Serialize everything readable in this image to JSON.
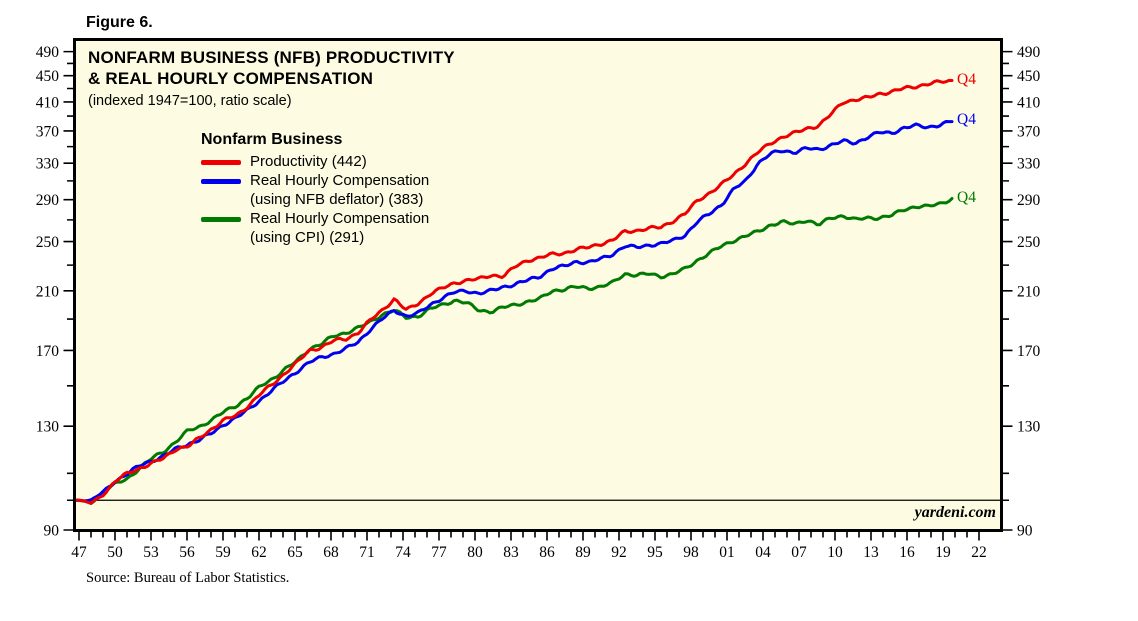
{
  "figure_label": "Figure 6.",
  "chart": {
    "title_line1": "NONFARM BUSINESS (NFB) PRODUCTIVITY",
    "title_line2": "& REAL HOURLY COMPENSATION",
    "subtitle": "(indexed 1947=100, ratio scale)",
    "legend": {
      "header": "Nonfarm Business",
      "items": [
        {
          "lines": [
            "Productivity (442)",
            ""
          ],
          "color": "#ee0000"
        },
        {
          "lines": [
            "Real Hourly Compensation",
            "(using NFB deflator) (383)"
          ],
          "color": "#0000ee"
        },
        {
          "lines": [
            "Real Hourly Compensation",
            "(using CPI) (291)"
          ],
          "color": "#007a00"
        }
      ]
    },
    "end_labels": [
      {
        "text": "Q4",
        "color": "#ee0000",
        "value": 442
      },
      {
        "text": "Q4",
        "color": "#0000ee",
        "value": 383
      },
      {
        "text": "Q4",
        "color": "#007a00",
        "value": 291
      }
    ],
    "watermark": "yardeni.com",
    "source": "Source: Bureau of Labor Statistics."
  },
  "chart_data": {
    "type": "line",
    "scale": "log",
    "title": "NONFARM BUSINESS (NFB) PRODUCTIVITY & REAL HOURLY COMPENSATION",
    "subtitle": "indexed 1947=100, ratio scale",
    "bg_color": "#fdfce3",
    "ylim": [
      90,
      510
    ],
    "reference_line": 100,
    "y_ticks_major": [
      90,
      130,
      170,
      210,
      250,
      290,
      330,
      370,
      410,
      450,
      490
    ],
    "y_ticks_minor": [
      100,
      110,
      150,
      190,
      230,
      270,
      310,
      350,
      390,
      430,
      470
    ],
    "x_start_year": 1947,
    "x_axis_end_year": 2022,
    "x_label_step_years": 3,
    "x_tick_labels": [
      "47",
      "50",
      "53",
      "56",
      "59",
      "62",
      "65",
      "68",
      "71",
      "74",
      "77",
      "80",
      "83",
      "86",
      "89",
      "92",
      "95",
      "98",
      "01",
      "04",
      "07",
      "10",
      "13",
      "16",
      "19",
      "22"
    ],
    "data_end": "2019 Q4",
    "years": [
      1947,
      1948,
      1949,
      1950,
      1951,
      1952,
      1953,
      1954,
      1955,
      1956,
      1957,
      1958,
      1959,
      1960,
      1961,
      1962,
      1963,
      1964,
      1965,
      1966,
      1967,
      1968,
      1969,
      1970,
      1971,
      1972,
      1973,
      1974,
      1975,
      1976,
      1977,
      1978,
      1979,
      1980,
      1981,
      1982,
      1983,
      1984,
      1985,
      1986,
      1987,
      1988,
      1989,
      1990,
      1991,
      1992,
      1993,
      1994,
      1995,
      1996,
      1997,
      1998,
      1999,
      2000,
      2001,
      2002,
      2003,
      2004,
      2005,
      2006,
      2007,
      2008,
      2009,
      2010,
      2011,
      2012,
      2013,
      2014,
      2015,
      2016,
      2017,
      2018,
      2019
    ],
    "series": [
      {
        "name": "Productivity",
        "color": "#ee0000",
        "end_label": "Q4",
        "end_value": 442,
        "values": [
          100,
          99,
          102,
          107,
          110,
          112,
          114,
          116,
          120,
          121,
          125,
          129,
          133,
          135,
          140,
          146,
          151,
          157,
          163,
          170,
          172,
          176,
          177,
          181,
          189,
          196,
          204,
          196,
          201,
          208,
          212,
          216,
          218,
          219,
          222,
          221,
          229,
          234,
          236,
          239,
          240,
          243,
          245,
          248,
          251,
          259,
          260,
          262,
          263,
          269,
          276,
          289,
          297,
          306,
          317,
          330,
          343,
          354,
          362,
          367,
          373,
          377,
          392,
          410,
          413,
          416,
          422,
          425,
          430,
          433,
          437,
          440,
          442
        ]
      },
      {
        "name": "Real Hourly Compensation (using NFB deflator)",
        "color": "#0000ee",
        "end_label": "Q4",
        "end_value": 383,
        "values": [
          100,
          100,
          103,
          107,
          110,
          113,
          115,
          117,
          120,
          122,
          124,
          127,
          131,
          134,
          138,
          143,
          148,
          153,
          158,
          163,
          166,
          168,
          171,
          175,
          183,
          190,
          196,
          192,
          194,
          200,
          205,
          209,
          210,
          208,
          210,
          213,
          215,
          218,
          221,
          227,
          229,
          233,
          232,
          235,
          239,
          246,
          245,
          247,
          248,
          251,
          256,
          268,
          276,
          285,
          301,
          310,
          330,
          341,
          345,
          343,
          348,
          346,
          352,
          357,
          354,
          362,
          368,
          367,
          374,
          377,
          375,
          378,
          383
        ]
      },
      {
        "name": "Real Hourly Compensation (using CPI)",
        "color": "#007a00",
        "end_label": "Q4",
        "end_value": 291,
        "values": [
          100,
          99,
          103,
          106,
          108,
          112,
          116,
          119,
          123,
          128,
          130,
          133,
          137,
          140,
          144,
          150,
          154,
          159,
          164,
          171,
          174,
          179,
          181,
          184,
          188,
          193,
          196,
          191,
          192,
          197,
          200,
          203,
          201,
          196,
          195,
          198,
          200,
          202,
          204,
          210,
          211,
          213,
          212,
          213,
          216,
          223,
          222,
          223,
          221,
          223,
          227,
          234,
          240,
          246,
          251,
          255,
          259,
          265,
          268,
          266,
          270,
          265,
          272,
          274,
          270,
          272,
          272,
          274,
          280,
          283,
          283,
          286,
          291
        ]
      }
    ]
  }
}
